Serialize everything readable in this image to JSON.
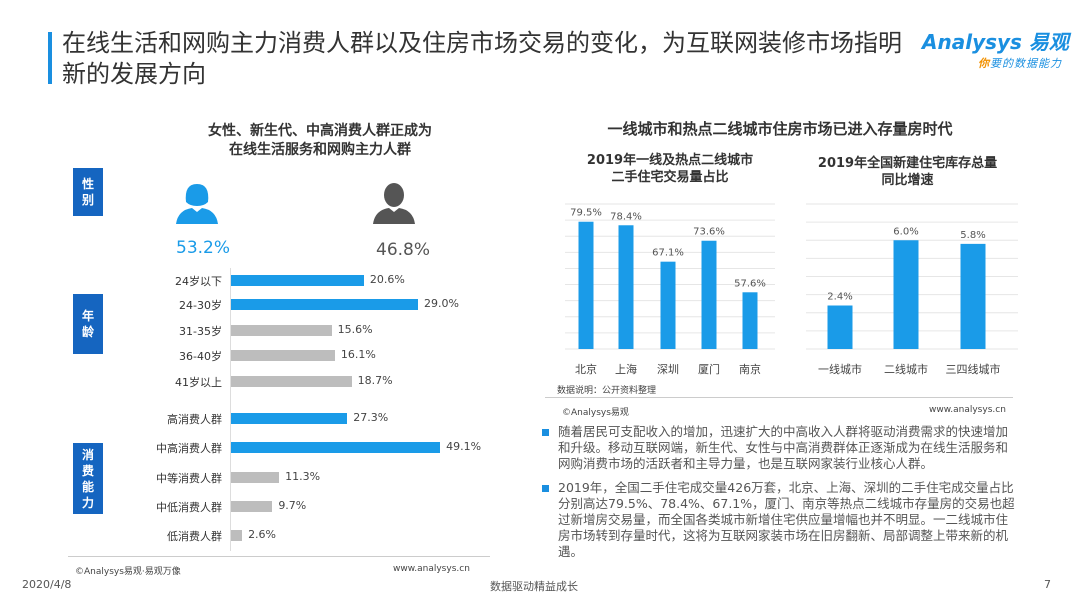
{
  "header": {
    "title": "在线生活和网购主力消费人群以及住房市场交易的变化，为互联网装修市场指明新的发展方向",
    "logo_brand": "Analysys 易观",
    "logo_slogan_accent": "你",
    "logo_slogan": "要的数据能力"
  },
  "left": {
    "title_line1": "女性、新生代、中高消费人群正成为",
    "title_line2": "在线生活服务和网购主力人群",
    "gender": {
      "label": "性别",
      "female_pct": "53.2%",
      "male_pct": "46.8%",
      "female_color": "#1a9be8",
      "male_color": "#555555"
    },
    "age": {
      "label": "年龄",
      "rows": [
        {
          "label": "24岁以下",
          "value": 20.6,
          "text": "20.6%",
          "highlight": true
        },
        {
          "label": "24-30岁",
          "value": 29.0,
          "text": "29.0%",
          "highlight": true
        },
        {
          "label": "31-35岁",
          "value": 15.6,
          "text": "15.6%",
          "highlight": false
        },
        {
          "label": "36-40岁",
          "value": 16.1,
          "text": "16.1%",
          "highlight": false
        },
        {
          "label": "41岁以上",
          "value": 18.7,
          "text": "18.7%",
          "highlight": false
        }
      ]
    },
    "consumption": {
      "label": "消费能力",
      "rows": [
        {
          "label": "高消费人群",
          "value": 27.3,
          "text": "27.3%",
          "highlight": true
        },
        {
          "label": "中高消费人群",
          "value": 49.1,
          "text": "49.1%",
          "highlight": true
        },
        {
          "label": "中等消费人群",
          "value": 11.3,
          "text": "11.3%",
          "highlight": false
        },
        {
          "label": "中低消费人群",
          "value": 9.7,
          "text": "9.7%",
          "highlight": false
        },
        {
          "label": "低消费人群",
          "value": 2.6,
          "text": "2.6%",
          "highlight": false
        }
      ]
    },
    "footer_copyright": "©Analysys易观·易观万像",
    "footer_url": "www.analysys.cn"
  },
  "right": {
    "title": "一线城市和热点二线城市住房市场已进入存量房时代",
    "source": "数据说明：公开资料整理",
    "footer_copyright": "©Analysys易观",
    "footer_url": "www.analysys.cn"
  },
  "chart_data": [
    {
      "type": "bar",
      "title": "2019年一线及热点二线城市\n二手住宅交易量占比",
      "title_line1": "2019年一线及热点二线城市",
      "title_line2": "二手住宅交易量占比",
      "categories": [
        "北京",
        "上海",
        "深圳",
        "厦门",
        "南京"
      ],
      "values": [
        79.5,
        78.4,
        67.1,
        73.6,
        57.6
      ],
      "labels": [
        "79.5%",
        "78.4%",
        "67.1%",
        "73.6%",
        "57.6%"
      ],
      "ylim": [
        40,
        85
      ],
      "grid": true,
      "color": "#1a9be8"
    },
    {
      "type": "bar",
      "title": "2019年全国新建住宅库存总量\n同比增速",
      "title_line1": "2019年全国新建住宅库存总量",
      "title_line2": "同比增速",
      "categories": [
        "一线城市",
        "二线城市",
        "三四线城市"
      ],
      "values": [
        2.4,
        6.0,
        5.8
      ],
      "labels": [
        "2.4%",
        "6.0%",
        "5.8%"
      ],
      "ylim": [
        0,
        8
      ],
      "grid": true,
      "color": "#1a9be8"
    }
  ],
  "bullets": [
    "随着居民可支配收入的增加，迅速扩大的中高收入人群将驱动消费需求的快速增加和升级。移动互联网端，新生代、女性与中高消费群体正逐渐成为在线生活服务和网购消费市场的活跃者和主导力量，也是互联网家装行业核心人群。",
    "2019年，全国二手住宅成交量426万套，北京、上海、深圳的二手住宅成交量占比分别高达79.5%、78.4%、67.1%，厦门、南京等热点二线城市存量房的交易也超过新增房交易量，而全国各类城市新增住宅供应量增幅也并不明显。一二线城市住房市场转到存量时代，这将为互联网家装市场在旧房翻新、局部调整上带来新的机遇。"
  ],
  "footer": {
    "date": "2020/4/8",
    "slogan": "数据驱动精益成长",
    "page": "7"
  }
}
